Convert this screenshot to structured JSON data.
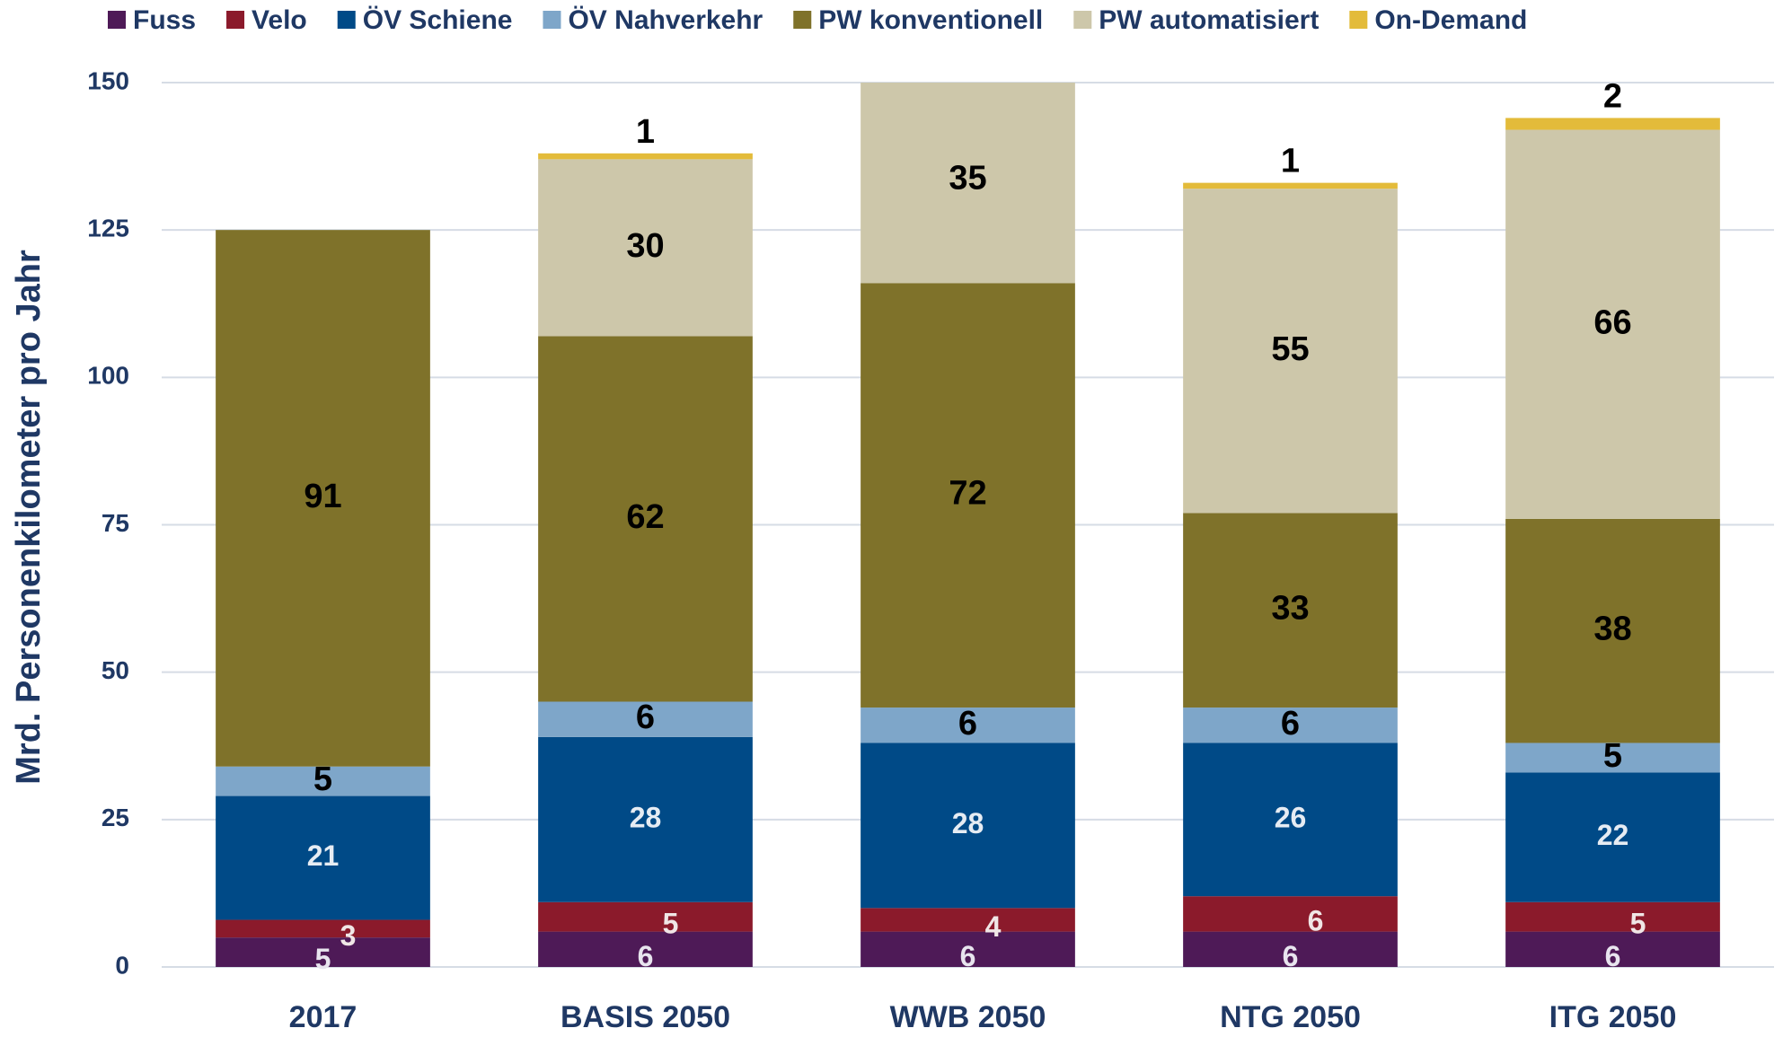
{
  "chart_data": {
    "type": "stacked_bar",
    "y_axis_label": "Mrd. Personenkilometer pro Jahr",
    "categories": [
      "2017",
      "BASIS 2050",
      "WWB 2050",
      "NTG 2050",
      "ITG 2050"
    ],
    "series": [
      {
        "name": "Fuss",
        "color": "#4e1a57",
        "label_color": "#e8e4ee",
        "values": [
          5,
          6,
          6,
          6,
          6
        ]
      },
      {
        "name": "Velo",
        "color": "#8b1a2b",
        "label_color": "#f0e6e6",
        "values": [
          3,
          5,
          4,
          6,
          5
        ]
      },
      {
        "name": "ÖV Schiene",
        "color": "#004a87",
        "label_color": "#e6ecf3",
        "values": [
          21,
          28,
          28,
          26,
          22
        ]
      },
      {
        "name": "ÖV Nahverkehr",
        "color": "#7ea6c9",
        "label_color": "#000000",
        "values": [
          5,
          6,
          6,
          6,
          5
        ]
      },
      {
        "name": "PW konventionell",
        "color": "#7f722a",
        "label_color": "#000000",
        "values": [
          91,
          62,
          72,
          33,
          38
        ]
      },
      {
        "name": "PW automatisiert",
        "color": "#cdc7aa",
        "label_color": "#000000",
        "values": [
          null,
          30,
          35,
          55,
          66
        ]
      },
      {
        "name": "On-Demand",
        "color": "#e3bb3a",
        "label_color": "#000000",
        "values": [
          null,
          1,
          null,
          1,
          2
        ]
      }
    ],
    "ylim": [
      0,
      150
    ],
    "yticks": [
      0,
      25,
      50,
      75,
      100,
      125,
      150
    ],
    "grid": true,
    "legend": "top"
  }
}
